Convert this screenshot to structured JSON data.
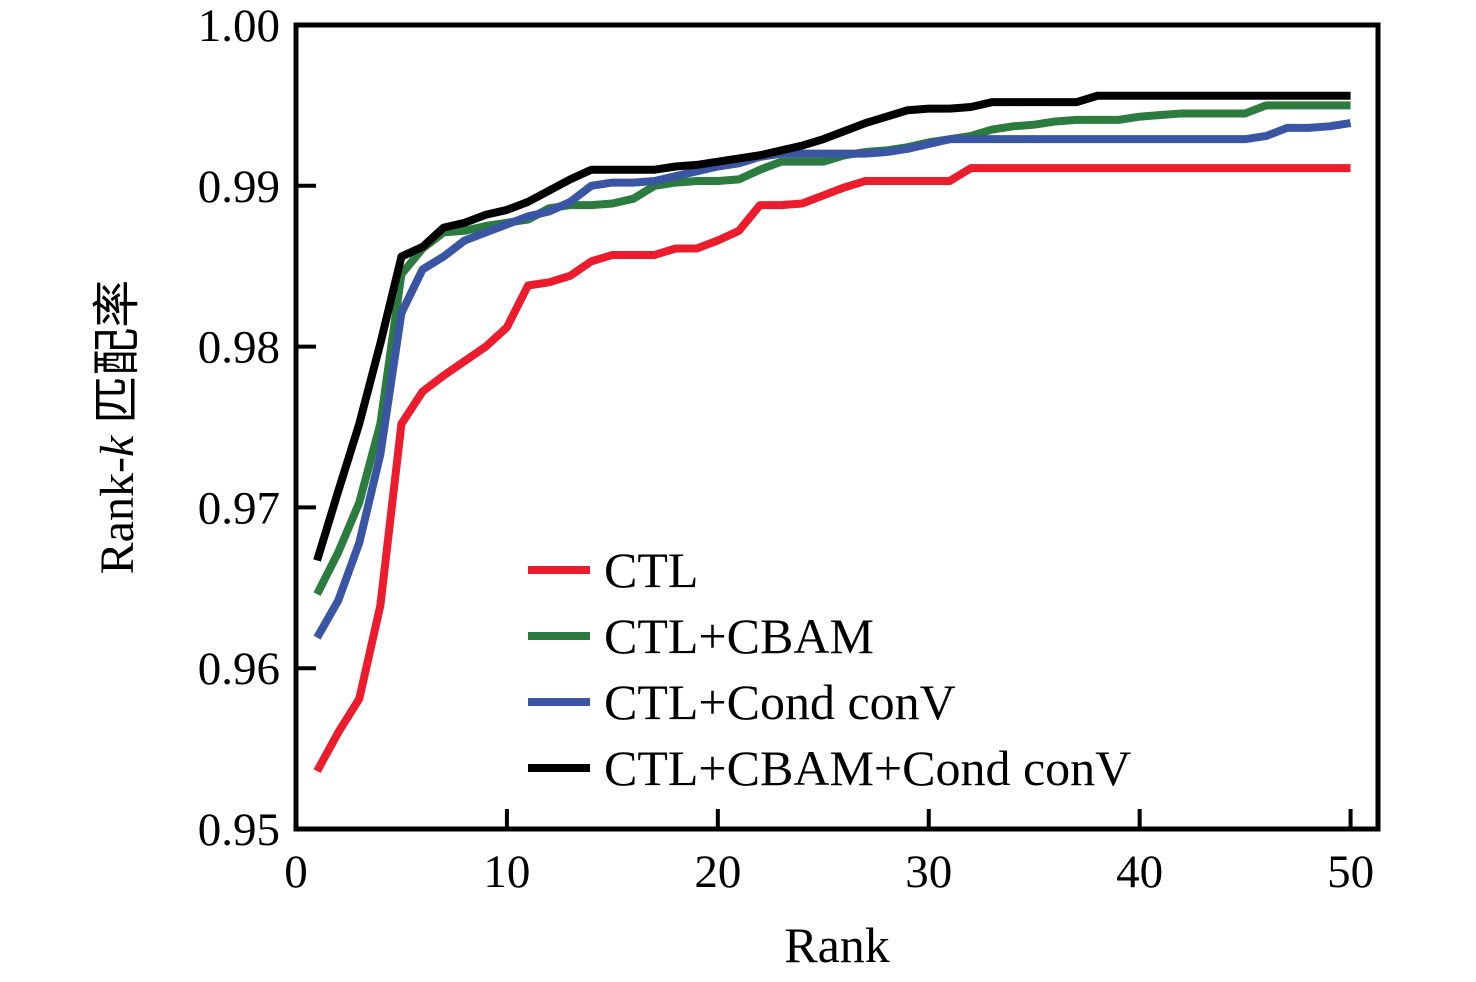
{
  "figure": {
    "background": "#ffffff"
  },
  "chart_data": {
    "type": "line",
    "title": "",
    "xlabel": "Rank",
    "ylabel": "Rank-k 匹配率",
    "ylabel_parts": {
      "prefix": "Rank-",
      "italic": "k",
      "suffix": " 匹配率"
    },
    "xlim": [
      0,
      51.3
    ],
    "ylim": [
      0.95,
      1.0
    ],
    "xticks": [
      0,
      10,
      20,
      30,
      40,
      50
    ],
    "yticks": [
      0.95,
      0.96,
      0.97,
      0.98,
      0.99,
      1.0
    ],
    "ytick_labels": [
      "0.95",
      "0.96",
      "0.97",
      "0.98",
      "0.99",
      "1.00"
    ],
    "grid": false,
    "legend_position": "inside-lower-center",
    "x": [
      1,
      2,
      3,
      4,
      5,
      6,
      7,
      8,
      9,
      10,
      11,
      12,
      13,
      14,
      15,
      16,
      17,
      18,
      19,
      20,
      21,
      22,
      23,
      24,
      25,
      26,
      27,
      28,
      29,
      30,
      31,
      32,
      33,
      34,
      35,
      36,
      37,
      38,
      39,
      40,
      41,
      42,
      43,
      44,
      45,
      46,
      47,
      48,
      49,
      50
    ],
    "series": [
      {
        "name": "CTL",
        "color": "#ec1c2d",
        "values": [
          0.9536,
          0.956,
          0.9581,
          0.9639,
          0.9752,
          0.9772,
          0.9782,
          0.9791,
          0.98,
          0.9812,
          0.9838,
          0.984,
          0.9844,
          0.9853,
          0.9857,
          0.9857,
          0.9857,
          0.9861,
          0.9861,
          0.9866,
          0.9872,
          0.9888,
          0.9888,
          0.9889,
          0.9894,
          0.9899,
          0.9903,
          0.9903,
          0.9903,
          0.9903,
          0.9903,
          0.9911,
          0.9911,
          0.9911,
          0.9911,
          0.9911,
          0.9911,
          0.9911,
          0.9911,
          0.9911,
          0.9911,
          0.9911,
          0.9911,
          0.9911,
          0.9911,
          0.9911,
          0.9911,
          0.9911,
          0.9911,
          0.9911
        ]
      },
      {
        "name": "CTL+CBAM",
        "color": "#2c7c3f",
        "values": [
          0.9646,
          0.9672,
          0.9703,
          0.9752,
          0.9845,
          0.9861,
          0.9871,
          0.9872,
          0.9875,
          0.9877,
          0.9879,
          0.9886,
          0.9888,
          0.9888,
          0.9889,
          0.9892,
          0.99,
          0.9902,
          0.9903,
          0.9903,
          0.9904,
          0.991,
          0.9915,
          0.9915,
          0.9915,
          0.9919,
          0.9921,
          0.9922,
          0.9924,
          0.9927,
          0.9929,
          0.9931,
          0.9935,
          0.9937,
          0.9938,
          0.994,
          0.9941,
          0.9941,
          0.9941,
          0.9943,
          0.9944,
          0.9945,
          0.9945,
          0.9945,
          0.9945,
          0.995,
          0.995,
          0.995,
          0.995,
          0.995
        ]
      },
      {
        "name": "CTL+Cond conV",
        "color": "#3a55a4",
        "values": [
          0.9619,
          0.9642,
          0.9678,
          0.9733,
          0.9821,
          0.9848,
          0.9856,
          0.9866,
          0.9871,
          0.9876,
          0.9881,
          0.9884,
          0.989,
          0.99,
          0.9902,
          0.9902,
          0.9903,
          0.9906,
          0.9909,
          0.9912,
          0.9914,
          0.9918,
          0.992,
          0.992,
          0.992,
          0.992,
          0.992,
          0.9921,
          0.9923,
          0.9926,
          0.9929,
          0.9929,
          0.9929,
          0.9929,
          0.9929,
          0.9929,
          0.9929,
          0.9929,
          0.9929,
          0.9929,
          0.9929,
          0.9929,
          0.9929,
          0.9929,
          0.9929,
          0.9931,
          0.9936,
          0.9936,
          0.9937,
          0.9939
        ]
      },
      {
        "name": "CTL+CBAM+Cond conV",
        "color": "#000000",
        "values": [
          0.9667,
          0.971,
          0.9752,
          0.9802,
          0.9856,
          0.9862,
          0.9874,
          0.9877,
          0.9882,
          0.9885,
          0.989,
          0.9897,
          0.9904,
          0.991,
          0.991,
          0.991,
          0.991,
          0.9912,
          0.9913,
          0.9915,
          0.9917,
          0.9919,
          0.9922,
          0.9925,
          0.9929,
          0.9934,
          0.9939,
          0.9943,
          0.9947,
          0.9948,
          0.9948,
          0.9949,
          0.9952,
          0.9952,
          0.9952,
          0.9952,
          0.9952,
          0.9956,
          0.9956,
          0.9956,
          0.9956,
          0.9956,
          0.9956,
          0.9956,
          0.9956,
          0.9956,
          0.9956,
          0.9956,
          0.9956,
          0.9956
        ]
      }
    ]
  }
}
